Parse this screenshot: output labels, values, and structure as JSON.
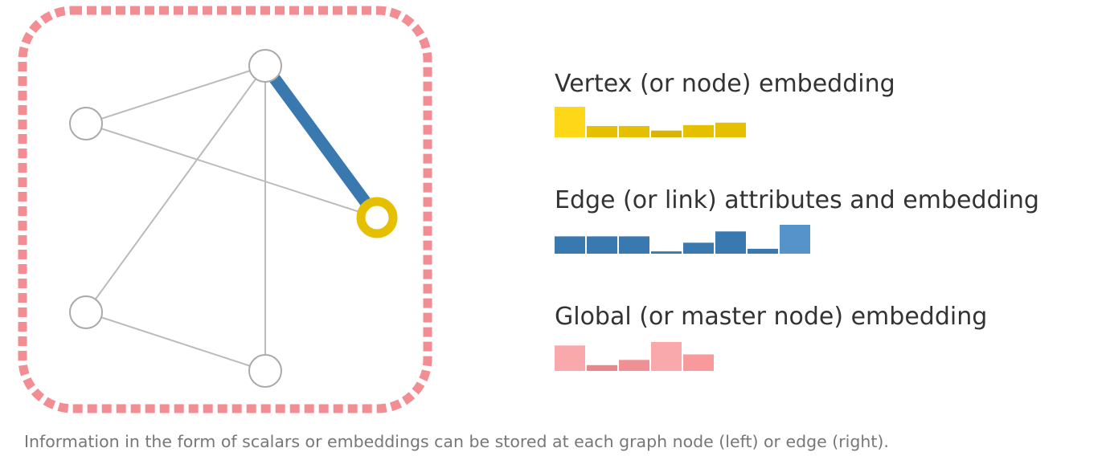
{
  "colors": {
    "border": "#f28e93",
    "graph_edge": "#bbbbbb",
    "node_stroke": "#aaaaaa",
    "highlight_edge": "#3a78b0",
    "highlight_node": "#e6c000"
  },
  "graph": {
    "nodes": [
      {
        "id": "top"
      },
      {
        "id": "left"
      },
      {
        "id": "right-highlighted"
      },
      {
        "id": "bottom-left"
      },
      {
        "id": "bottom"
      }
    ],
    "edges": [
      {
        "from": "top",
        "to": "left"
      },
      {
        "from": "top",
        "to": "bottom-left"
      },
      {
        "from": "top",
        "to": "bottom"
      },
      {
        "from": "left",
        "to": "right-highlighted"
      },
      {
        "from": "bottom-left",
        "to": "bottom"
      },
      {
        "from": "top",
        "to": "right-highlighted",
        "highlighted": true
      }
    ]
  },
  "legend": [
    {
      "key": "vertex",
      "title": "Vertex (or node) embedding",
      "values": [
        1.0,
        0.37,
        0.37,
        0.22,
        0.4,
        0.48
      ],
      "colors": [
        "#fdd819",
        "#e5c000",
        "#e5c000",
        "#d9b400",
        "#e5c000",
        "#e5c000"
      ]
    },
    {
      "key": "edge",
      "title": "Edge (or link) attributes and embedding",
      "values": [
        0.6,
        0.6,
        0.6,
        0.08,
        0.38,
        0.77,
        0.17,
        1.0
      ],
      "colors": [
        "#3a78b0",
        "#3a78b0",
        "#3a78b0",
        "#3a78b0",
        "#3a78b0",
        "#3a78b0",
        "#3a78b0",
        "#5593c9"
      ]
    },
    {
      "key": "global",
      "title": "Global (or master node) embedding",
      "values": [
        0.88,
        0.2,
        0.38,
        1.0,
        0.57
      ],
      "colors": [
        "#f9a9ab",
        "#ea8589",
        "#f19093",
        "#f9a9ab",
        "#f8999b"
      ]
    }
  ],
  "caption": "Information in the form of scalars or embeddings can be stored at each graph node (left) or edge (right)."
}
